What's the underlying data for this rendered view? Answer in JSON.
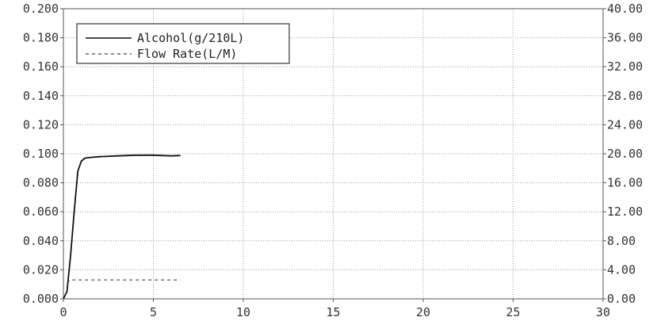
{
  "chart_data": {
    "type": "line",
    "xlim": [
      0,
      30
    ],
    "ylim_left": [
      0,
      0.2
    ],
    "ylim_right": [
      0,
      40
    ],
    "x_ticks": [
      0,
      5,
      10,
      15,
      20,
      25,
      30
    ],
    "x_tick_labels": [
      "0",
      "5",
      "10",
      "15",
      "20",
      "25",
      "30"
    ],
    "y_left_ticks": [
      0,
      0.02,
      0.04,
      0.06,
      0.08,
      0.1,
      0.12,
      0.14,
      0.16,
      0.18,
      0.2
    ],
    "y_left_tick_labels": [
      "0.000",
      "0.020",
      "0.040",
      "0.060",
      "0.080",
      "0.100",
      "0.120",
      "0.140",
      "0.160",
      "0.180",
      "0.200"
    ],
    "y_right_ticks": [
      0,
      4,
      8,
      12,
      16,
      20,
      24,
      28,
      32,
      36,
      40
    ],
    "y_right_tick_labels": [
      "0.00",
      "4.00",
      "8.00",
      "12.00",
      "16.00",
      "20.00",
      "24.00",
      "28.00",
      "32.00",
      "36.00",
      "40.00"
    ],
    "grid": true,
    "legend_position": "top-left",
    "series": [
      {
        "name": "Alcohol(g/210L)",
        "axis": "left",
        "style": "solid",
        "color": "#111111",
        "x": [
          0,
          0.2,
          0.4,
          0.6,
          0.8,
          1.0,
          1.2,
          1.5,
          2.0,
          3.0,
          4.0,
          5.0,
          6.0,
          6.5
        ],
        "y": [
          0,
          0.005,
          0.03,
          0.06,
          0.088,
          0.095,
          0.097,
          0.0975,
          0.098,
          0.0985,
          0.099,
          0.099,
          0.0985,
          0.0988
        ]
      },
      {
        "name": "Flow Rate(L/M)",
        "axis": "right",
        "style": "dashed",
        "color": "#444444",
        "x": [
          0.2,
          0.4,
          1,
          2,
          3,
          4,
          5,
          6,
          6.5
        ],
        "y": [
          2.2,
          2.6,
          2.6,
          2.6,
          2.6,
          2.6,
          2.6,
          2.6,
          2.6
        ]
      }
    ]
  }
}
